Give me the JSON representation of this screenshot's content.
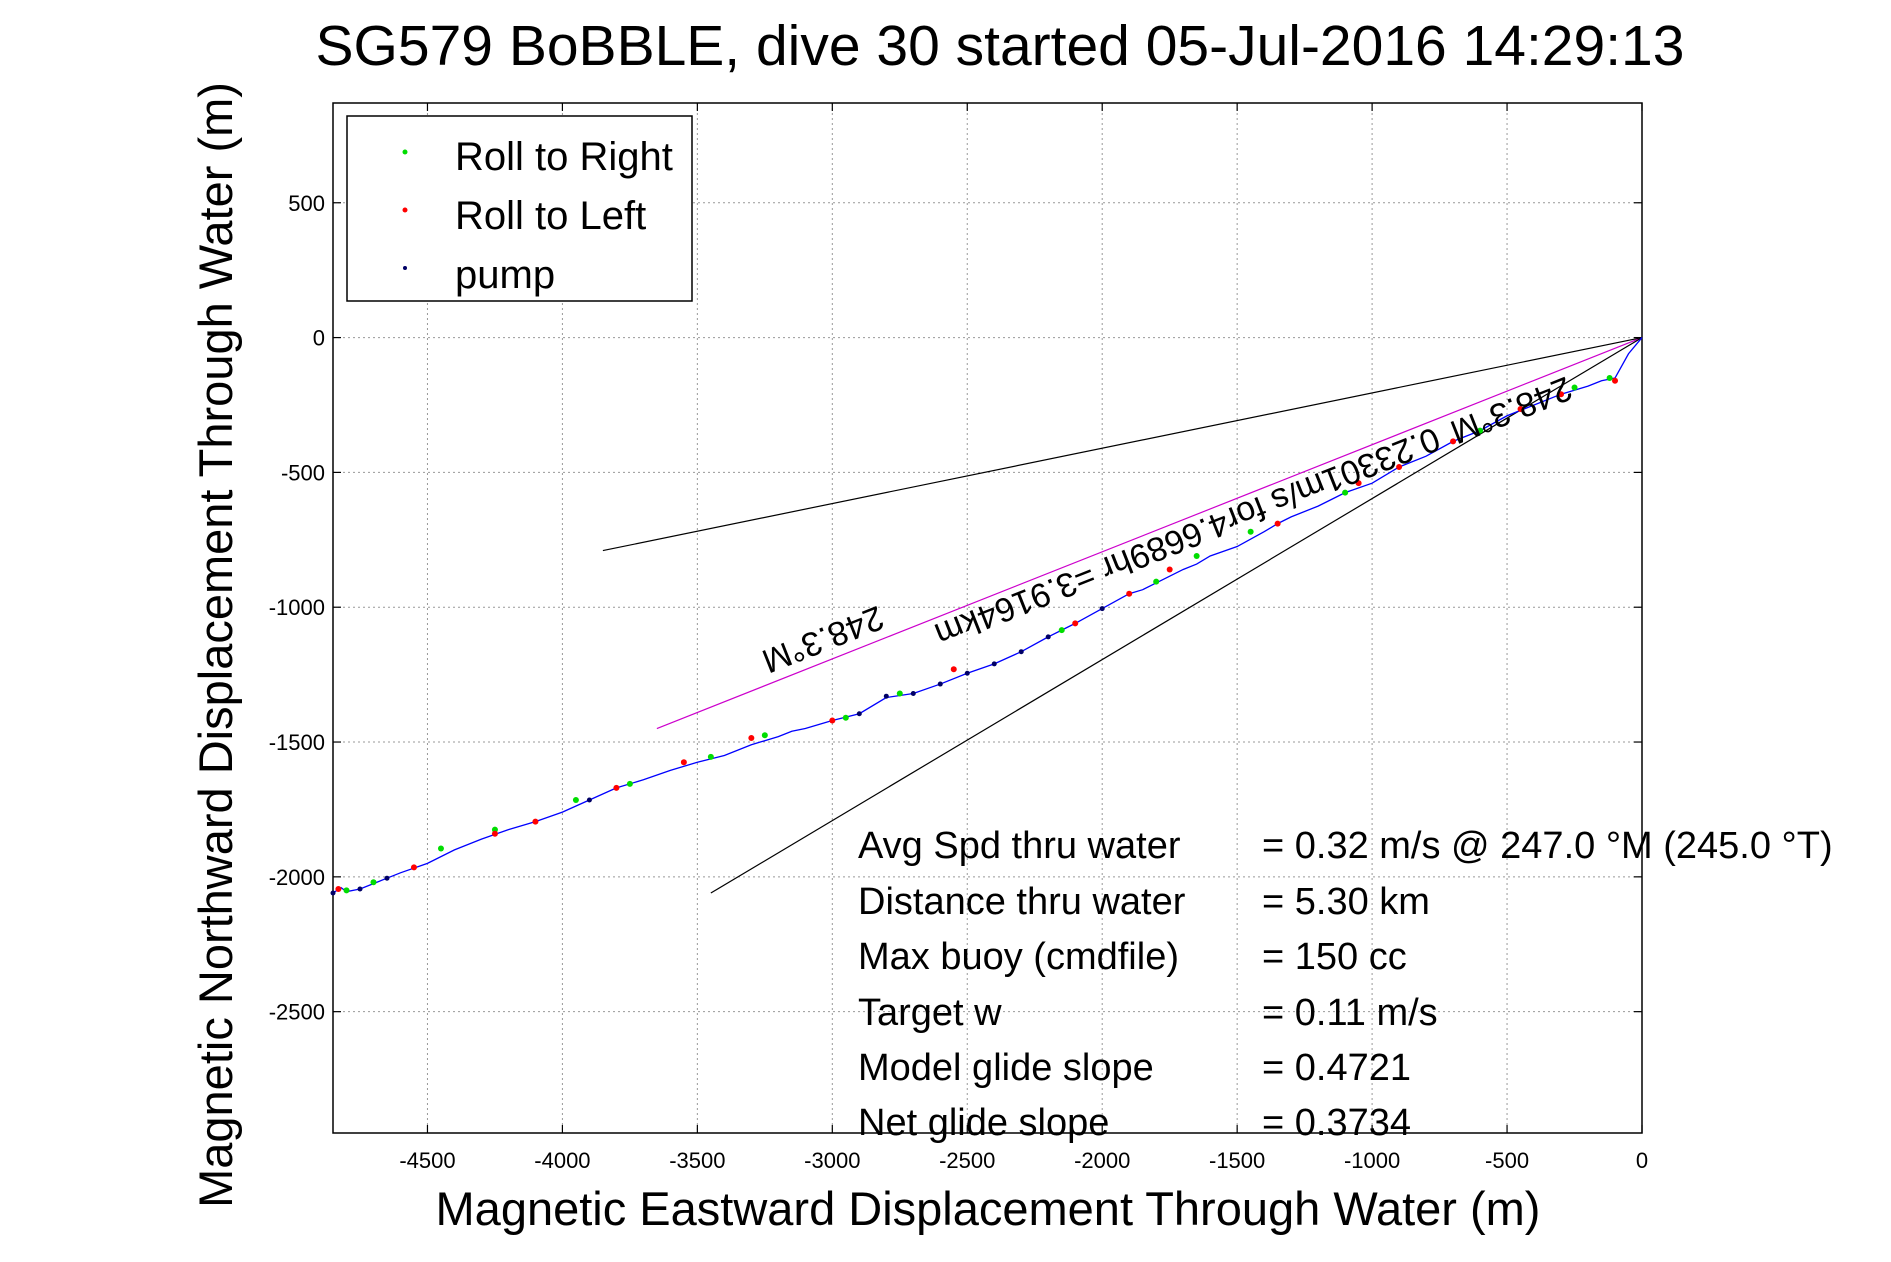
{
  "chart_data": {
    "type": "line",
    "title": "SG579 BoBBLE, dive 30 started 05-Jul-2016 14:29:13",
    "xlabel": "Magnetic Eastward Displacement Through Water (m)",
    "ylabel": "Magnetic Northward Displacement Through Water (m)",
    "xlim": [
      -4850,
      0
    ],
    "ylim": [
      -2950,
      870
    ],
    "xticks": [
      -4500,
      -4000,
      -3500,
      -3000,
      -2500,
      -2000,
      -1500,
      -1000,
      -500,
      0
    ],
    "yticks": [
      500,
      0,
      -500,
      -1000,
      -1500,
      -2000,
      -2500
    ],
    "grid": true,
    "legend_position": "top-left",
    "legend": [
      {
        "label": "Roll to Right",
        "color": "#00dd00"
      },
      {
        "label": "Roll to Left",
        "color": "#ff0000"
      },
      {
        "label": "pump",
        "color": "#000066"
      }
    ],
    "track": {
      "color": "#0000ff",
      "x": [
        0,
        -50,
        -100,
        -150,
        -200,
        -300,
        -400,
        -500,
        -600,
        -700,
        -800,
        -900,
        -1000,
        -1100,
        -1200,
        -1300,
        -1350,
        -1400,
        -1500,
        -1600,
        -1650,
        -1700,
        -1800,
        -1850,
        -1900,
        -2000,
        -2100,
        -2150,
        -2200,
        -2300,
        -2400,
        -2500,
        -2600,
        -2700,
        -2800,
        -2900,
        -3000,
        -3100,
        -3150,
        -3200,
        -3300,
        -3400,
        -3500,
        -3600,
        -3700,
        -3800,
        -3900,
        -4000,
        -4100,
        -4200,
        -4300,
        -4400,
        -4500,
        -4600,
        -4700,
        -4750,
        -4800,
        -4820,
        -4850
      ],
      "y": [
        0,
        -60,
        -150,
        -160,
        -180,
        -210,
        -250,
        -290,
        -345,
        -385,
        -440,
        -480,
        -540,
        -575,
        -625,
        -665,
        -690,
        -720,
        -775,
        -810,
        -840,
        -860,
        -910,
        -935,
        -950,
        -1005,
        -1060,
        -1085,
        -1110,
        -1165,
        -1210,
        -1245,
        -1285,
        -1320,
        -1335,
        -1395,
        -1420,
        -1450,
        -1460,
        -1480,
        -1510,
        -1550,
        -1575,
        -1605,
        -1640,
        -1670,
        -1715,
        -1760,
        -1795,
        -1825,
        -1860,
        -1900,
        -1950,
        -1985,
        -2025,
        -2045,
        -2055,
        -2040,
        -2060
      ]
    },
    "markers": {
      "roll_right": {
        "x": [
          -120,
          -250,
          -600,
          -1100,
          -1450,
          -1650,
          -1800,
          -2150,
          -2750,
          -2950,
          -3250,
          -3450,
          -3750,
          -3950,
          -4250,
          -4450,
          -4700,
          -4800
        ],
        "y": [
          -150,
          -185,
          -345,
          -575,
          -720,
          -810,
          -905,
          -1085,
          -1320,
          -1410,
          -1475,
          -1555,
          -1655,
          -1715,
          -1825,
          -1895,
          -2020,
          -2050
        ]
      },
      "roll_left": {
        "x": [
          -100,
          -300,
          -450,
          -700,
          -900,
          -1050,
          -1350,
          -1750,
          -1900,
          -2100,
          -2550,
          -3000,
          -3300,
          -3550,
          -3800,
          -4100,
          -4250,
          -4550,
          -4830
        ],
        "y": [
          -160,
          -210,
          -265,
          -385,
          -480,
          -540,
          -690,
          -860,
          -950,
          -1060,
          -1230,
          -1420,
          -1485,
          -1575,
          -1670,
          -1795,
          -1840,
          -1965,
          -2045
        ]
      },
      "pump": {
        "x": [
          -2000,
          -2200,
          -2300,
          -2400,
          -2500,
          -2600,
          -2700,
          -2800,
          -2900,
          -3900,
          -4650,
          -4750,
          -4850
        ],
        "y": [
          -1005,
          -1110,
          -1165,
          -1210,
          -1245,
          -1285,
          -1320,
          -1330,
          -1395,
          -1715,
          -2005,
          -2045,
          -2060
        ]
      }
    },
    "reference_lines": [
      {
        "color": "#cc00cc",
        "x": [
          0,
          -3650
        ],
        "y": [
          0,
          -1450
        ]
      },
      {
        "color": "#000000",
        "x": [
          0,
          -3850
        ],
        "y": [
          0,
          -790
        ]
      },
      {
        "color": "#000000",
        "x": [
          0,
          -3450
        ],
        "y": [
          0,
          -2060
        ]
      }
    ],
    "annotations": [
      {
        "text": "248.3°M",
        "x": -3050,
        "y": -1080
      },
      {
        "text": "0.23301m/s for4.6689hr =3.9164km",
        "x": -1700,
        "y": -700
      },
      {
        "text": "248.3°M",
        "x": -500,
        "y": -230
      }
    ],
    "stats": [
      {
        "label": "Avg Spd thru water",
        "value": "=  0.32 m/s @ 247.0 °M (245.0 °T)"
      },
      {
        "label": "Distance thru water",
        "value": "=  5.30 km"
      },
      {
        "label": "Max buoy (cmdfile)",
        "value": "= 150 cc"
      },
      {
        "label": "Target w",
        "value": "= 0.11 m/s"
      },
      {
        "label": "Model glide slope",
        "value": "= 0.4721"
      },
      {
        "label": "Net glide slope",
        "value": "= 0.3734"
      }
    ]
  }
}
